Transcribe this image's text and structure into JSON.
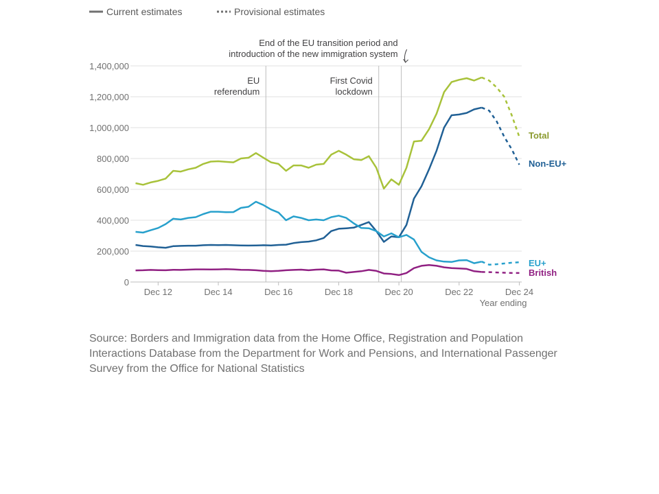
{
  "legend": {
    "current_label": "Current estimates",
    "provisional_label": "Provisional estimates"
  },
  "source_text": "Source: Borders and Immigration data from the Home Office, Registration and Population Interactions Database from the Department for Work and Pensions, and International Passenger Survey from the Office for National Statistics",
  "chart_data": {
    "type": "line",
    "x_axis": {
      "range": [
        2012.0,
        2025.0
      ],
      "ticks": [
        {
          "label": "Dec 12",
          "x": 2012.92
        },
        {
          "label": "Dec 14",
          "x": 2014.92
        },
        {
          "label": "Dec 16",
          "x": 2016.92
        },
        {
          "label": "Dec 18",
          "x": 2018.92
        },
        {
          "label": "Dec 20",
          "x": 2020.92
        },
        {
          "label": "Dec 22",
          "x": 2022.92
        },
        {
          "label": "Dec 24",
          "x": 2024.92
        }
      ],
      "title": "Year ending"
    },
    "y_axis": {
      "range": [
        0,
        1400000
      ],
      "ticks": [
        0,
        200000,
        400000,
        600000,
        800000,
        1000000,
        1200000,
        1400000
      ],
      "tick_labels": [
        "0",
        "200,000",
        "400,000",
        "600,000",
        "800,000",
        "1,000,000",
        "1,200,000",
        "1,400,000"
      ]
    },
    "grid": true,
    "annotations": [
      {
        "x": 2016.5,
        "lines": [
          "EU",
          "referendum"
        ],
        "align": "end"
      },
      {
        "x": 2020.25,
        "lines": [
          "First Covid",
          "lockdown"
        ],
        "align": "end"
      },
      {
        "x": 2021.0,
        "lines": [
          "End of the EU transition period and",
          "introduction of the new immigration system"
        ],
        "align": "end",
        "callout": true
      }
    ],
    "series": [
      {
        "name": "Total",
        "color": "#a8c23a",
        "label_color": "#8a9a2e",
        "x": [
          2012.17,
          2012.42,
          2012.67,
          2012.92,
          2013.17,
          2013.42,
          2013.67,
          2013.92,
          2014.17,
          2014.42,
          2014.67,
          2014.92,
          2015.17,
          2015.42,
          2015.67,
          2015.92,
          2016.17,
          2016.42,
          2016.67,
          2016.92,
          2017.17,
          2017.42,
          2017.67,
          2017.92,
          2018.17,
          2018.42,
          2018.67,
          2018.92,
          2019.17,
          2019.42,
          2019.67,
          2019.92,
          2020.17,
          2020.42,
          2020.67,
          2020.92,
          2021.17,
          2021.42,
          2021.67,
          2021.92,
          2022.17,
          2022.42,
          2022.67,
          2022.92,
          2023.17,
          2023.42,
          2023.67,
          2023.92,
          2024.17,
          2024.42,
          2024.67,
          2024.92
        ],
        "y": [
          640000,
          630000,
          645000,
          655000,
          670000,
          720000,
          715000,
          730000,
          740000,
          765000,
          780000,
          782000,
          778000,
          775000,
          800000,
          805000,
          835000,
          805000,
          775000,
          765000,
          720000,
          755000,
          755000,
          740000,
          760000,
          765000,
          825000,
          850000,
          825000,
          795000,
          790000,
          815000,
          740000,
          605000,
          665000,
          630000,
          740000,
          910000,
          915000,
          990000,
          1090000,
          1230000,
          1295000,
          1310000,
          1320000,
          1305000,
          1325000,
          1305000,
          1260000,
          1200000,
          1080000,
          940000
        ],
        "provisional_from_index": 46
      },
      {
        "name": "Non-EU+",
        "color": "#206095",
        "label_color": "#206095",
        "x": [
          2012.17,
          2012.42,
          2012.67,
          2012.92,
          2013.17,
          2013.42,
          2013.67,
          2013.92,
          2014.17,
          2014.42,
          2014.67,
          2014.92,
          2015.17,
          2015.42,
          2015.67,
          2015.92,
          2016.17,
          2016.42,
          2016.67,
          2016.92,
          2017.17,
          2017.42,
          2017.67,
          2017.92,
          2018.17,
          2018.42,
          2018.67,
          2018.92,
          2019.17,
          2019.42,
          2019.67,
          2019.92,
          2020.17,
          2020.42,
          2020.67,
          2020.92,
          2021.17,
          2021.42,
          2021.67,
          2021.92,
          2022.17,
          2022.42,
          2022.67,
          2022.92,
          2023.17,
          2023.42,
          2023.67,
          2023.92,
          2024.17,
          2024.42,
          2024.67,
          2024.92
        ],
        "y": [
          240000,
          233000,
          230000,
          225000,
          222000,
          232000,
          234000,
          235000,
          235000,
          238000,
          240000,
          239000,
          240000,
          238000,
          237000,
          236000,
          237000,
          238000,
          237000,
          240000,
          242000,
          252000,
          258000,
          262000,
          270000,
          285000,
          330000,
          345000,
          348000,
          352000,
          370000,
          388000,
          330000,
          260000,
          295000,
          290000,
          370000,
          540000,
          620000,
          730000,
          850000,
          1000000,
          1080000,
          1085000,
          1095000,
          1118000,
          1130000,
          1110000,
          1040000,
          940000,
          860000,
          760000
        ],
        "provisional_from_index": 46
      },
      {
        "name": "EU+",
        "color": "#27a0cc",
        "label_color": "#27a0cc",
        "x": [
          2012.17,
          2012.42,
          2012.67,
          2012.92,
          2013.17,
          2013.42,
          2013.67,
          2013.92,
          2014.17,
          2014.42,
          2014.67,
          2014.92,
          2015.17,
          2015.42,
          2015.67,
          2015.92,
          2016.17,
          2016.42,
          2016.67,
          2016.92,
          2017.17,
          2017.42,
          2017.67,
          2017.92,
          2018.17,
          2018.42,
          2018.67,
          2018.92,
          2019.17,
          2019.42,
          2019.67,
          2019.92,
          2020.17,
          2020.42,
          2020.67,
          2020.92,
          2021.17,
          2021.42,
          2021.67,
          2021.92,
          2022.17,
          2022.42,
          2022.67,
          2022.92,
          2023.17,
          2023.42,
          2023.67,
          2023.92,
          2024.17,
          2024.42,
          2024.67,
          2024.92
        ],
        "y": [
          325000,
          320000,
          335000,
          350000,
          375000,
          410000,
          405000,
          415000,
          420000,
          440000,
          455000,
          455000,
          452000,
          453000,
          480000,
          487000,
          520000,
          498000,
          470000,
          450000,
          400000,
          425000,
          415000,
          400000,
          405000,
          400000,
          420000,
          430000,
          415000,
          380000,
          350000,
          348000,
          330000,
          295000,
          315000,
          290000,
          305000,
          275000,
          195000,
          160000,
          140000,
          132000,
          130000,
          140000,
          142000,
          122000,
          132000,
          112000,
          115000,
          120000,
          125000,
          128000
        ],
        "provisional_from_index": 46
      },
      {
        "name": "British",
        "color": "#902082",
        "label_color": "#902082",
        "x": [
          2012.17,
          2012.42,
          2012.67,
          2012.92,
          2013.17,
          2013.42,
          2013.67,
          2013.92,
          2014.17,
          2014.42,
          2014.67,
          2014.92,
          2015.17,
          2015.42,
          2015.67,
          2015.92,
          2016.17,
          2016.42,
          2016.67,
          2016.92,
          2017.17,
          2017.42,
          2017.67,
          2017.92,
          2018.17,
          2018.42,
          2018.67,
          2018.92,
          2019.17,
          2019.42,
          2019.67,
          2019.92,
          2020.17,
          2020.42,
          2020.67,
          2020.92,
          2021.17,
          2021.42,
          2021.67,
          2021.92,
          2022.17,
          2022.42,
          2022.67,
          2022.92,
          2023.17,
          2023.42,
          2023.67,
          2023.92,
          2024.17,
          2024.42,
          2024.67,
          2024.92
        ],
        "y": [
          75000,
          76000,
          78000,
          77000,
          76000,
          79000,
          78000,
          80000,
          82000,
          82000,
          81000,
          82000,
          83000,
          82000,
          79000,
          78000,
          76000,
          72000,
          70000,
          72000,
          76000,
          78000,
          80000,
          76000,
          80000,
          82000,
          75000,
          74000,
          60000,
          65000,
          70000,
          78000,
          72000,
          55000,
          52000,
          45000,
          58000,
          90000,
          105000,
          110000,
          105000,
          95000,
          90000,
          88000,
          85000,
          70000,
          65000,
          64000,
          62000,
          60000,
          58000,
          58000
        ],
        "provisional_from_index": 46
      }
    ]
  }
}
